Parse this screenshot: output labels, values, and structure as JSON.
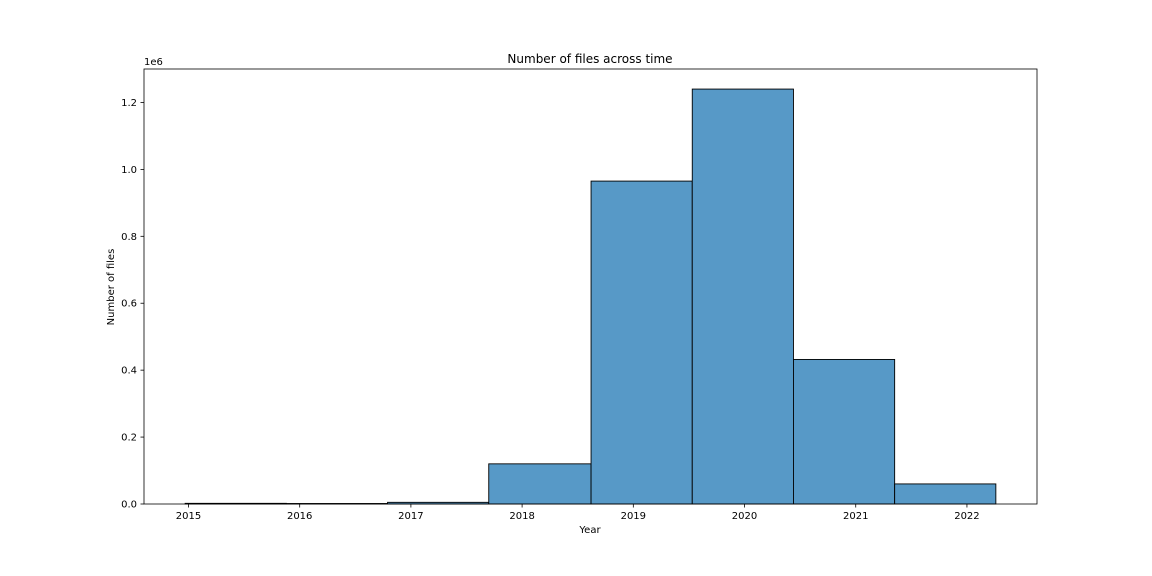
{
  "chart_data": {
    "type": "bar",
    "title": "Number of files across time",
    "xlabel": "Year",
    "ylabel": "Number of files",
    "y_offset_label": "1e6",
    "y_multiplier": 1000000,
    "x_ticks": [
      2015,
      2016,
      2017,
      2018,
      2019,
      2020,
      2021,
      2022
    ],
    "y_ticks": [
      "0.0",
      "0.2",
      "0.4",
      "0.6",
      "0.8",
      "1.0",
      "1.2"
    ],
    "xlim": [
      2014.6,
      2022.63
    ],
    "ylim": [
      0,
      1300000
    ],
    "bins": [
      {
        "start": 2014.97,
        "end": 2015.88,
        "value": 2000
      },
      {
        "start": 2015.88,
        "end": 2016.79,
        "value": 1500
      },
      {
        "start": 2016.79,
        "end": 2017.7,
        "value": 5000
      },
      {
        "start": 2017.7,
        "end": 2018.62,
        "value": 120000
      },
      {
        "start": 2018.62,
        "end": 2019.53,
        "value": 965000
      },
      {
        "start": 2019.53,
        "end": 2020.44,
        "value": 1240000
      },
      {
        "start": 2020.44,
        "end": 2021.35,
        "value": 432000
      },
      {
        "start": 2021.35,
        "end": 2022.26,
        "value": 60000
      }
    ],
    "bar_color": "#5799c7",
    "edge_color": "#000000",
    "grid": false,
    "legend": "none"
  }
}
